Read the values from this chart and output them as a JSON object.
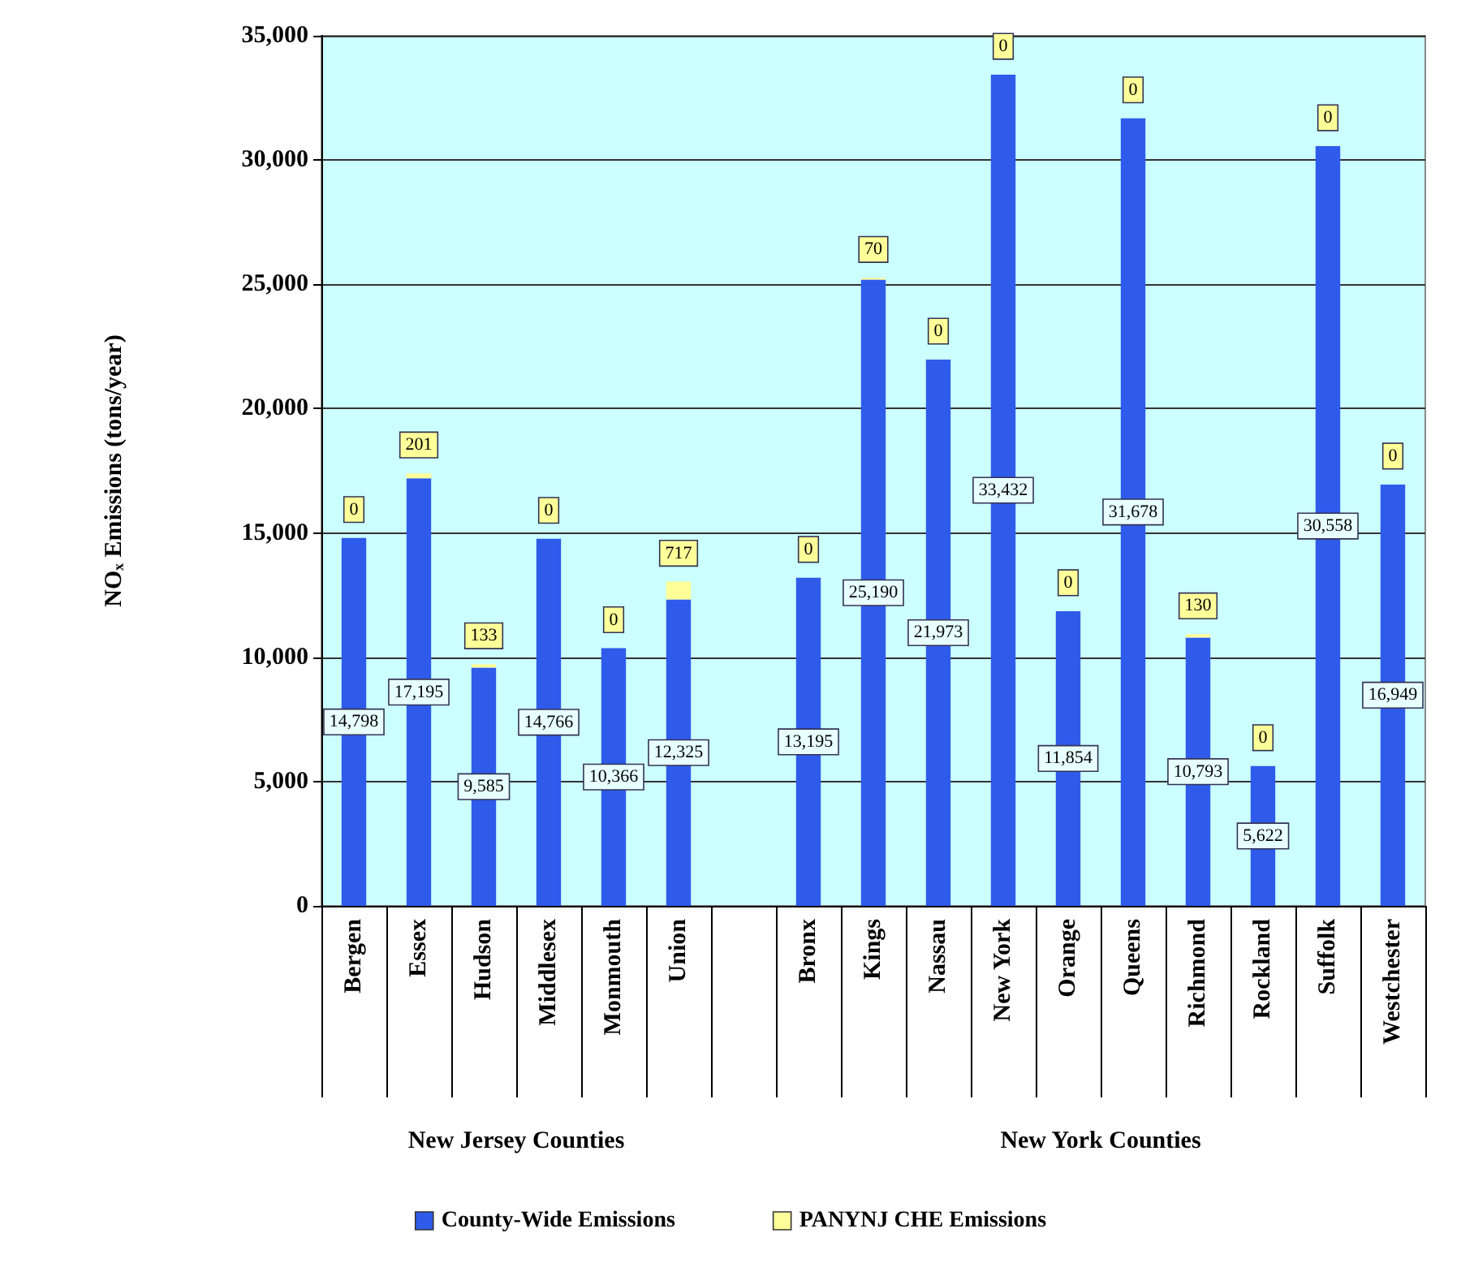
{
  "chart_data": {
    "type": "bar",
    "stacked": true,
    "ylabel": "NOₓ Emissions (tons/year)",
    "categories": [
      "Bergen",
      "Essex",
      "Hudson",
      "Middlesex",
      "Monmouth",
      "Union",
      null,
      "Bronx",
      "Kings",
      "Nassau",
      "New York",
      "Orange",
      "Queens",
      "Richmond",
      "Rockland",
      "Suffolk",
      "Westchester"
    ],
    "series": [
      {
        "name": "County-Wide Emissions",
        "color": "#2f5bea",
        "values": [
          14798,
          17195,
          9585,
          14766,
          10366,
          12325,
          null,
          13195,
          25190,
          21973,
          33432,
          11854,
          31678,
          10793,
          5622,
          30558,
          16949
        ],
        "value_labels": [
          "14,798",
          "17,195",
          "9,585",
          "14,766",
          "10,366",
          "12,325",
          null,
          "13,195",
          "25,190",
          "21,973",
          "33,432",
          "11,854",
          "31,678",
          "10,793",
          "5,622",
          "30,558",
          "16,949"
        ]
      },
      {
        "name": "PANYNJ CHE Emissions",
        "color": "#ffff99",
        "values": [
          0,
          201,
          133,
          0,
          0,
          717,
          null,
          0,
          70,
          0,
          0,
          0,
          0,
          130,
          0,
          0,
          0
        ],
        "value_labels": [
          "0",
          "201",
          "133",
          "0",
          "0",
          "717",
          null,
          "0",
          "70",
          "0",
          "0",
          "0",
          "0",
          "130",
          "0",
          "0",
          "0"
        ]
      }
    ],
    "ylim": [
      0,
      35000
    ],
    "yticks": [
      {
        "value": 0,
        "label": "0"
      },
      {
        "value": 5000,
        "label": "5,000"
      },
      {
        "value": 10000,
        "label": "10,000"
      },
      {
        "value": 15000,
        "label": "15,000"
      },
      {
        "value": 20000,
        "label": "20,000"
      },
      {
        "value": 25000,
        "label": "25,000"
      },
      {
        "value": 30000,
        "label": "30,000"
      },
      {
        "value": 35000,
        "label": "35,000"
      }
    ],
    "grid": "y",
    "legend": "bottom",
    "annotations": [
      "New Jersey Counties",
      "New York Counties"
    ]
  }
}
